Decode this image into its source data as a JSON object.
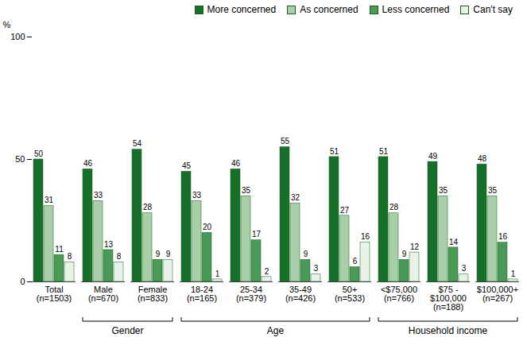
{
  "chart_data": {
    "type": "bar",
    "ylabel": "%",
    "categories": [
      "Total\n(n=1503)",
      "Male\n(n=670)",
      "Female\n(n=833)",
      "18-24\n(n=165)",
      "25-34\n(n=379)",
      "35-49\n(n=426)",
      "50+\n(n=533)",
      "<$75,000\n(n=766)",
      "$75 -\n$100,000\n(n=188)",
      "$100,000+\n(n=267)"
    ],
    "series": [
      {
        "name": "More concerned",
        "color": "#16702a",
        "values": [
          50,
          46,
          54,
          45,
          46,
          55,
          51,
          51,
          49,
          48
        ]
      },
      {
        "name": "As concerned",
        "color": "#a9cfa9",
        "values": [
          31,
          33,
          28,
          33,
          35,
          32,
          27,
          28,
          35,
          35
        ]
      },
      {
        "name": "Less concerned",
        "color": "#4a9a57",
        "values": [
          11,
          13,
          9,
          20,
          17,
          9,
          6,
          9,
          14,
          16
        ]
      },
      {
        "name": "Can't say",
        "color": "#e8f2e8",
        "values": [
          8,
          8,
          9,
          1,
          2,
          3,
          16,
          12,
          3,
          1
        ]
      }
    ],
    "groups": [
      {
        "label": "Gender",
        "members": [
          "Male\n(n=670)",
          "Female\n(n=833)"
        ]
      },
      {
        "label": "Age",
        "members": [
          "18-24\n(n=165)",
          "25-34\n(n=379)",
          "35-49\n(n=426)",
          "50+\n(n=533)"
        ]
      },
      {
        "label": "Household income",
        "members": [
          "<$75,000\n(n=766)",
          "$75 -\n$100,000\n(n=188)",
          "$100,000+\n(n=267)"
        ]
      }
    ],
    "ylim": [
      0,
      100
    ],
    "yticks": [
      0,
      50,
      100
    ],
    "grid": false,
    "legend": "top-right",
    "data_labels": true
  }
}
